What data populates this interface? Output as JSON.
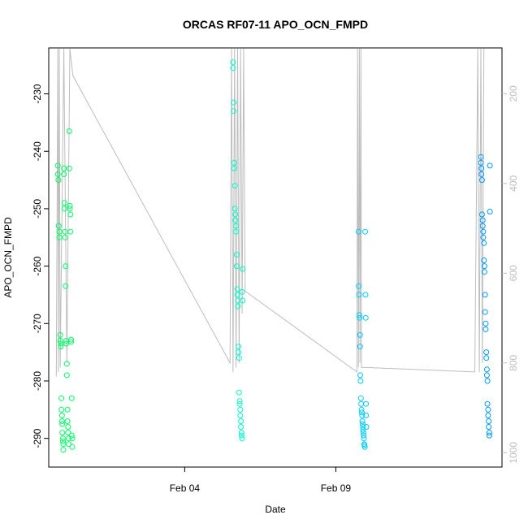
{
  "chart_data": {
    "type": "scatter",
    "title": "ORCAS RF07-11 APO_OCN_FMPD",
    "xlabel": "Date",
    "ylabel": "APO_OCN_FMPD",
    "x_ticks": [
      "Feb 04",
      "Feb 09"
    ],
    "x_tick_days": [
      4,
      9
    ],
    "xlim_days": [
      -0.5,
      14.5
    ],
    "ylim": [
      -295,
      -222
    ],
    "y_ticks": [
      -230,
      -240,
      -250,
      -260,
      -270,
      -280,
      -290
    ],
    "y2_ticks": [
      200,
      400,
      600,
      800,
      1000
    ],
    "y2lim": [
      1032,
      98
    ],
    "y2_meaning": "altitude trace (grey line, right axis)",
    "grid": false,
    "legend": "none",
    "colors": {
      "flight_1": "#00ff66",
      "flight_2": "#00ffcc",
      "flight_3": "#00ccff",
      "flight_4": "#0099ff",
      "altitude_line": "#bdbdbd",
      "frame": "#000000"
    },
    "series": [
      {
        "color_key": "flight_1",
        "x": [
          -0.2,
          -0.2,
          -0.18,
          -0.17,
          -0.15,
          -0.15,
          -0.12,
          -0.12,
          -0.1,
          -0.1,
          -0.08,
          -0.08,
          -0.06,
          -0.06,
          -0.05,
          -0.05,
          -0.03,
          -0.03,
          -0.02,
          -0.02,
          0.0,
          0.0,
          0.02,
          0.02,
          0.04,
          0.04,
          0.06,
          0.06,
          0.08,
          0.08,
          0.1,
          0.1,
          0.12,
          0.12,
          0.14,
          0.14,
          0.16,
          0.16,
          0.18,
          0.18,
          0.2,
          0.2,
          0.22,
          0.22,
          0.24,
          0.24,
          0.26,
          0.26,
          0.28,
          0.28
        ],
        "y": [
          -242.5,
          -244,
          -245,
          -253,
          -254,
          -255,
          -272,
          -273,
          -273.5,
          -274,
          -283,
          -285,
          -286,
          -287,
          -287.5,
          -289,
          -290,
          -290.5,
          -291,
          -292,
          -243,
          -244,
          -249,
          -250,
          -254,
          -255,
          -260,
          -263.5,
          -273,
          -273.5,
          -277,
          -279,
          -285,
          -287,
          -288,
          -289,
          -290,
          -291,
          -236.5,
          -243,
          -249.5,
          -250,
          -251,
          -254,
          -272.8,
          -273.2,
          -283,
          -289.5,
          -290,
          -291.5
        ]
      },
      {
        "color_key": "flight_2",
        "x": [
          5.6,
          5.6,
          5.62,
          5.62,
          5.64,
          5.64,
          5.66,
          5.66,
          5.68,
          5.68,
          5.7,
          5.7,
          5.72,
          5.72,
          5.74,
          5.74,
          5.76,
          5.76,
          5.78,
          5.78,
          5.8,
          5.8,
          5.82,
          5.82,
          5.84,
          5.84,
          5.86,
          5.86,
          5.88,
          5.88,
          5.9,
          5.9,
          5.92,
          5.92
        ],
        "y": [
          -224.5,
          -225.5,
          -231.5,
          -233,
          -242,
          -243,
          -246,
          -250,
          -251,
          -252,
          -253,
          -254,
          -258,
          -260,
          -264,
          -265,
          -266,
          -267,
          -274,
          -275,
          -276,
          -282,
          -283.5,
          -284,
          -285,
          -286,
          -287,
          -288,
          -289,
          -289.5,
          -290,
          -264.5,
          -260.5,
          -266
        ]
      },
      {
        "color_key": "flight_3",
        "x": [
          9.75,
          9.76,
          9.77,
          9.78,
          9.79,
          9.8,
          9.8,
          9.81,
          9.82,
          9.83,
          9.84,
          9.85,
          9.86,
          9.87,
          9.88,
          9.89,
          9.9,
          9.9,
          9.91,
          9.92,
          9.93,
          9.94,
          9.95,
          9.96,
          9.97,
          9.98,
          9.99,
          10.0,
          10.0,
          10.01
        ],
        "y": [
          -254,
          -263.5,
          -265,
          -268.5,
          -269,
          -272,
          -274,
          -279,
          -280,
          -283,
          -284,
          -285,
          -285.5,
          -286,
          -287,
          -287.5,
          -288,
          -288.5,
          -289,
          -289.5,
          -290,
          -291,
          -291.2,
          -291.5,
          -254,
          -265,
          -269,
          -284,
          -286,
          -288
        ]
      },
      {
        "color_key": "flight_4",
        "x": [
          13.8,
          13.8,
          13.82,
          13.82,
          13.84,
          13.84,
          13.86,
          13.86,
          13.88,
          13.88,
          13.9,
          13.9,
          13.92,
          13.92,
          13.94,
          13.94,
          13.96,
          13.96,
          13.98,
          13.98,
          14.0,
          14.0,
          14.02,
          14.02,
          14.04,
          14.04,
          14.06,
          14.06,
          14.08,
          14.08,
          14.1,
          14.1
        ],
        "y": [
          -241,
          -242,
          -243,
          -244,
          -245,
          -251,
          -252,
          -253,
          -254,
          -255,
          -256,
          -259,
          -260,
          -261,
          -265,
          -268,
          -270,
          -271,
          -275,
          -276,
          -278,
          -279,
          -280,
          -284,
          -285,
          -286,
          -287,
          -288,
          -289,
          -289.5,
          -242.5,
          -250.5
        ]
      }
    ],
    "altitude_trace": {
      "x": [
        -0.25,
        -0.2,
        -0.18,
        -0.15,
        -0.12,
        0.0,
        0.1,
        0.2,
        0.3,
        5.5,
        5.55,
        5.6,
        5.65,
        5.7,
        5.75,
        5.8,
        5.85,
        5.9,
        5.95,
        6.0,
        9.7,
        9.72,
        9.75,
        9.78,
        9.8,
        9.83,
        9.85,
        10.0,
        13.6,
        13.7,
        13.75,
        13.8,
        13.85,
        13.9
      ],
      "y": [
        830,
        100,
        820,
        100,
        810,
        100,
        800,
        100,
        160,
        800,
        100,
        820,
        100,
        810,
        100,
        800,
        100,
        690,
        100,
        640,
        820,
        100,
        810,
        100,
        800,
        100,
        810,
        810,
        820,
        100,
        820,
        100,
        800,
        100
      ]
    }
  }
}
